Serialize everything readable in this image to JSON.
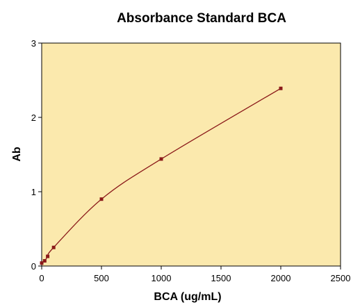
{
  "chart_data": {
    "type": "scatter",
    "title": "Absorbance Standard BCA",
    "xlabel": "BCA (ug/mL)",
    "ylabel": "Ab",
    "xlim": [
      0,
      2500
    ],
    "ylim": [
      0,
      3
    ],
    "x_ticks": [
      "0",
      "500",
      "1000",
      "1500",
      "2000",
      "2500"
    ],
    "y_ticks": [
      "0",
      "1",
      "2",
      "3"
    ],
    "grid": false,
    "background_color": "#fbe9ad",
    "marker_color": "#8b1a1a",
    "line_color": "#8b1a1a",
    "series": [
      {
        "points": [
          {
            "x": 0,
            "y": 0.04
          },
          {
            "x": 25,
            "y": 0.07
          },
          {
            "x": 50,
            "y": 0.13
          },
          {
            "x": 100,
            "y": 0.25
          },
          {
            "x": 500,
            "y": 0.9
          },
          {
            "x": 1000,
            "y": 1.44
          },
          {
            "x": 2000,
            "y": 2.39
          }
        ]
      }
    ],
    "fit_curve": "smooth"
  }
}
